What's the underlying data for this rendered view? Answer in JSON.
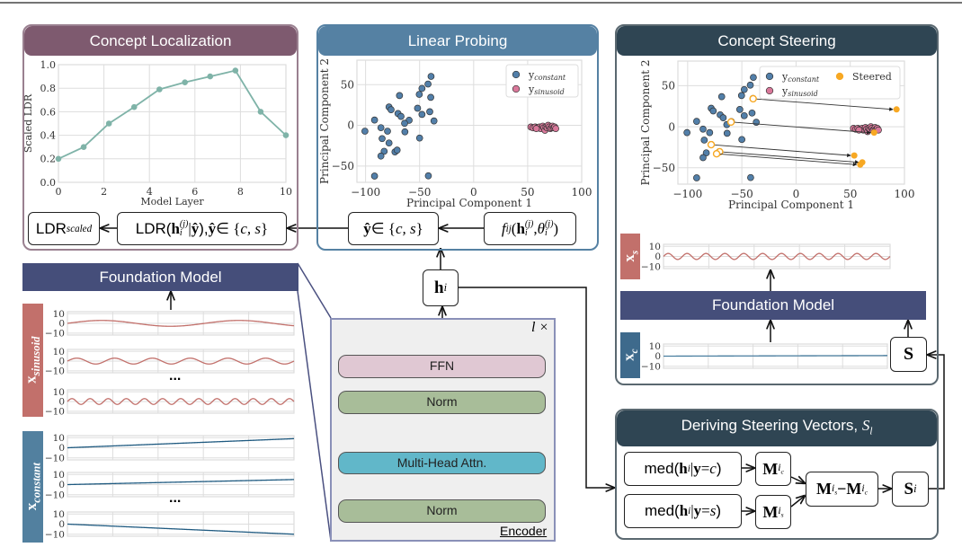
{
  "colors": {
    "concept_localization": "#7e5a6f",
    "linear_probing": "#5581a3",
    "concept_steering": "#2f4553",
    "foundation_model": "#454e7a",
    "sinusoid": "#c2706b",
    "constant": "#52809f",
    "ffn": "#e0c8d3",
    "norm": "#a8bd99",
    "attention": "#61b7c9",
    "scatter_constant": "#527fa9",
    "scatter_sinusoid": "#d9789a",
    "steered": "#f7a823",
    "line": "#7fb3a8"
  },
  "concept_localization": {
    "title": "Concept Localization",
    "ldr_scaled": {
      "main": "LDR",
      "sub": "scaled"
    },
    "ldr_box": {
      "pre": "LDR(",
      "h": "h",
      "h_sub": "i",
      "h_sup": "(j)",
      "mid": " | ",
      "yhat": "ŷ",
      "post": "), ",
      "yhat2": "ŷ",
      "in": " ∈ {",
      "set": "c, s",
      "close": "}"
    }
  },
  "linear_probing": {
    "title": "Linear Probing",
    "yhat_box": {
      "yhat": "ŷ",
      "in": " ∈ {",
      "set": "c, s",
      "close": "}"
    },
    "f_box": {
      "f": "f",
      "f_sub": "ij",
      "open": "(",
      "h": "h",
      "h_sub": "i",
      "h_sup": "(j)",
      "comma": ", ",
      "theta": "θ",
      "theta_sub": "i",
      "theta_sup": "(j)",
      "close": ")"
    }
  },
  "concept_steering": {
    "title": "Concept Steering",
    "foundation_model": "Foundation Model",
    "xs_label": {
      "x": "x",
      "sub": "s"
    },
    "xc_label": {
      "x": "x",
      "sub": "c"
    },
    "s_box": "S"
  },
  "foundation_model_left": {
    "title": "Foundation Model",
    "sinusoid_label": {
      "x": "x",
      "sub": "sinusoid"
    },
    "constant_label": {
      "x": "x",
      "sub": "constant"
    },
    "ellipsis": "..."
  },
  "encoder": {
    "repeat": "l ×",
    "ffn": "FFN",
    "norm_top": "Norm",
    "attention": "Multi-Head Attn.",
    "norm_bottom": "Norm",
    "label": "Encoder",
    "plus": "+"
  },
  "hi_box": {
    "h": "h",
    "sub": "i"
  },
  "deriving": {
    "title": "Deriving Steering Vectors, ",
    "title_sym": "S",
    "title_sub": "l",
    "med_c": {
      "pre": "med(",
      "h": "h",
      "h_sub": "i",
      "mid": " | ",
      "y": "y",
      "eq": " = ",
      "val": "c",
      "close": ")"
    },
    "med_s": {
      "pre": "med(",
      "h": "h",
      "h_sub": "i",
      "mid": " | ",
      "y": "y",
      "eq": " = ",
      "val": "s",
      "close": ")"
    },
    "m_ic": {
      "M": "M",
      "i": "i",
      "sub": "c"
    },
    "m_is": {
      "M": "M",
      "i": "i",
      "sub": "s"
    },
    "diff": {
      "M1": "M",
      "i1": "i",
      "s1": "s",
      "minus": " − ",
      "M2": "M",
      "i2": "i",
      "s2": "c"
    },
    "s_i": {
      "S": "S",
      "sub": "i"
    }
  },
  "chart_data": [
    {
      "id": "ldr",
      "type": "line",
      "xlabel": "Model Layer",
      "ylabel": "Scaled LDR",
      "xlim": [
        0,
        10
      ],
      "ylim": [
        0,
        1
      ],
      "xticks": [
        0,
        2,
        4,
        6,
        8,
        10
      ],
      "yticks": [
        0.0,
        0.2,
        0.4,
        0.6,
        0.8,
        1.0
      ],
      "grid": true,
      "x": [
        0,
        1.11,
        2.22,
        3.33,
        4.44,
        5.56,
        6.67,
        7.78,
        8.89,
        10
      ],
      "y": [
        0.2,
        0.3,
        0.5,
        0.64,
        0.79,
        0.85,
        0.9,
        0.95,
        0.6,
        0.4
      ]
    },
    {
      "id": "probe",
      "type": "scatter",
      "xlabel": "Principal Component 1",
      "ylabel": "Principal Component 2",
      "xlim": [
        -108,
        100
      ],
      "ylim": [
        -70,
        80
      ],
      "xticks": [
        -100,
        -50,
        0,
        50,
        100
      ],
      "yticks": [
        -50,
        0,
        50
      ],
      "grid": true,
      "legend": "top-right",
      "series": [
        {
          "name": "y",
          "name_sub": "constant",
          "points": [
            [
              -100.6,
              -7.2
            ],
            [
              -91.7,
              6.5
            ],
            [
              -85.8,
              -2.9
            ],
            [
              -84.7,
              -16.3
            ],
            [
              -82.8,
              -31.9
            ],
            [
              -85.8,
              -37.7
            ],
            [
              -91.7,
              -62.3
            ],
            [
              -78.3,
              22.5
            ],
            [
              -76.4,
              19.2
            ],
            [
              -68.6,
              36.6
            ],
            [
              -70,
              14.5
            ],
            [
              -67.2,
              10.9
            ],
            [
              -59.7,
              6.2
            ],
            [
              -63.9,
              2.5
            ],
            [
              -63.6,
              -8
            ],
            [
              -72.8,
              -32.6
            ],
            [
              -70.8,
              -30.4
            ],
            [
              -51.9,
              21
            ],
            [
              -50.3,
              38
            ],
            [
              -47.8,
              45.3
            ],
            [
              -42.2,
              50.7
            ],
            [
              -39.4,
              60.1
            ],
            [
              -39.7,
              34.4
            ],
            [
              -40.6,
              16.7
            ],
            [
              -47.8,
              13.4
            ],
            [
              -50,
              -15.6
            ],
            [
              -36.7,
              5.4
            ],
            [
              -41.9,
              -62
            ],
            [
              -79.7,
              -7.2
            ],
            [
              -78.3,
              -21.7
            ]
          ]
        },
        {
          "name": "y",
          "name_sub": "sinusoid",
          "points": [
            [
              53,
              -2
            ],
            [
              55,
              -3
            ],
            [
              57,
              -2
            ],
            [
              59,
              -3
            ],
            [
              61,
              -2
            ],
            [
              62,
              -4
            ],
            [
              64,
              -1
            ],
            [
              65,
              -3
            ],
            [
              66,
              -6
            ],
            [
              67,
              -2
            ],
            [
              68,
              -3
            ],
            [
              69,
              0
            ],
            [
              70,
              -2
            ],
            [
              71,
              -4
            ],
            [
              72,
              -3
            ],
            [
              73,
              -1
            ],
            [
              74,
              -3
            ],
            [
              75,
              -2
            ],
            [
              76,
              -4
            ],
            [
              58,
              -4
            ]
          ]
        }
      ]
    },
    {
      "id": "steer",
      "type": "scatter",
      "xlabel": "Principal Component 1",
      "ylabel": "Principal Component 2",
      "xlim": [
        -109,
        100
      ],
      "ylim": [
        -70,
        80
      ],
      "xticks": [
        -100,
        -50,
        0,
        50,
        100
      ],
      "yticks": [
        -50,
        0,
        50
      ],
      "grid": true,
      "legend": "top-right",
      "steered_label": "Steered",
      "steered": [
        {
          "from": [
            -39.6,
            34.1
          ],
          "to": [
            92.7,
            21.1
          ]
        },
        {
          "from": [
            -60,
            5.7
          ],
          "to": [
            72,
            -7.2
          ]
        },
        {
          "from": [
            -78.3,
            -21.9
          ],
          "to": [
            53.7,
            -35.1
          ]
        },
        {
          "from": [
            -70.5,
            -30.5
          ],
          "to": [
            61.1,
            -43.4
          ]
        },
        {
          "from": [
            -73.3,
            -33
          ],
          "to": [
            59.2,
            -46.2
          ]
        }
      ]
    },
    {
      "id": "sin1",
      "type": "line",
      "signal": "sinusoid",
      "amplitude": 3,
      "cycles": 1.65,
      "ylim": [
        -12,
        12
      ],
      "yticks": [
        10,
        0,
        -10
      ]
    },
    {
      "id": "sin2",
      "type": "line",
      "signal": "sinusoid",
      "amplitude": 3,
      "cycles": 6,
      "ylim": [
        -12,
        12
      ],
      "yticks": [
        10,
        0,
        -10
      ]
    },
    {
      "id": "sin3",
      "type": "line",
      "signal": "sinusoid",
      "amplitude": 3,
      "cycles": 12.5,
      "ylim": [
        -12,
        12
      ],
      "yticks": [
        10,
        0,
        -10
      ]
    },
    {
      "id": "con1",
      "type": "line",
      "signal": "linear",
      "start": 0,
      "end": 9,
      "ylim": [
        -12,
        12
      ],
      "yticks": [
        10,
        0,
        -10
      ]
    },
    {
      "id": "con2",
      "type": "line",
      "signal": "linear",
      "start": 0,
      "end": 5,
      "ylim": [
        -12,
        12
      ],
      "yticks": [
        10,
        0,
        -10
      ]
    },
    {
      "id": "con3",
      "type": "line",
      "signal": "linear",
      "start": 0,
      "end": -10,
      "ylim": [
        -12,
        12
      ],
      "yticks": [
        10,
        0,
        -10
      ]
    },
    {
      "id": "xs",
      "type": "line",
      "signal": "sinusoid",
      "amplitude": 3,
      "cycles": 12,
      "ylim": [
        -12,
        12
      ],
      "yticks": [
        10,
        0,
        -10
      ]
    },
    {
      "id": "xc",
      "type": "line",
      "signal": "linear",
      "start": 0,
      "end": 0.6,
      "ylim": [
        -12,
        12
      ],
      "yticks": [
        10,
        0,
        -10
      ]
    }
  ]
}
